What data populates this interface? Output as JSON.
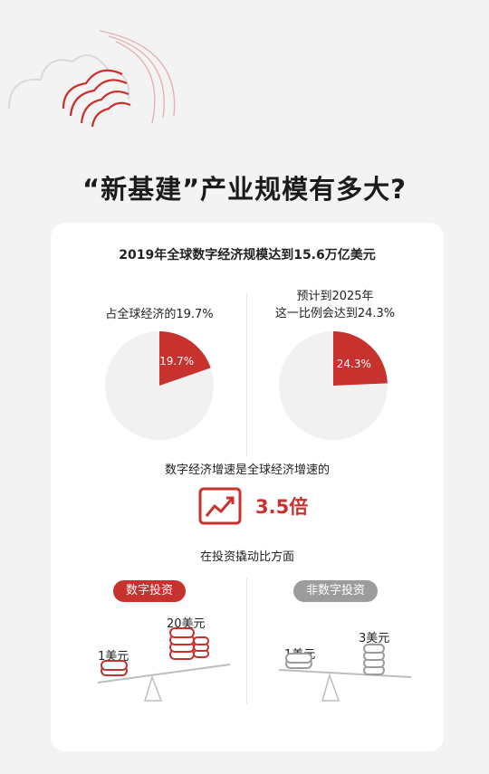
{
  "page_title": "“新基建”产业规模有多大?",
  "colors": {
    "accent": "#c8322e",
    "grey": "#9c9c9c",
    "pie_bg": "#f1f1f1"
  },
  "card": {
    "headline": "2019年全球数字经济规模达到15.6万亿美元",
    "left_caption": "占全球经济的19.7%",
    "right_caption_line1": "预计到2025年",
    "right_caption_line2": "这一比例会达到24.3%",
    "growth_text": "数字经济增速是全球经济增速的",
    "growth_value": "3.5倍",
    "growth_icon": "trend-up-icon",
    "investment_title": "在投资撬动比方面",
    "digital_label": "数字投资",
    "non_digital_label": "非数字投资",
    "digital_input": "1美元",
    "digital_output": "20美元",
    "non_digital_input": "1美元",
    "non_digital_output": "3美元"
  },
  "chart_data": [
    {
      "type": "pie",
      "title": "占全球经济的19.7%",
      "slices": [
        {
          "label": "19.7%",
          "value": 19.7
        },
        {
          "label": "",
          "value": 80.3
        }
      ]
    },
    {
      "type": "pie",
      "title": "预计到2025年 这一比例会达到24.3%",
      "slices": [
        {
          "label": "24.3%",
          "value": 24.3
        },
        {
          "label": "",
          "value": 75.7
        }
      ]
    }
  ]
}
